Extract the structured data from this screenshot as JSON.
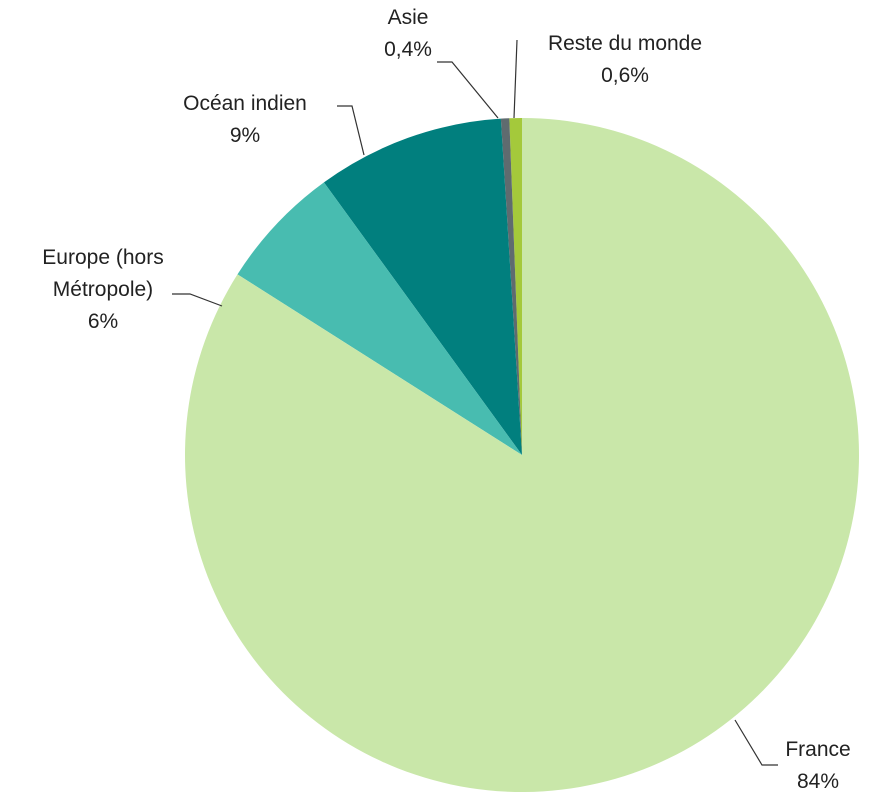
{
  "chart_data": {
    "type": "pie",
    "categories": [
      "France",
      "Europe (hors Métropole)",
      "Océan indien",
      "Asie",
      "Reste du monde"
    ],
    "values": [
      84,
      6,
      9,
      0.4,
      0.6
    ],
    "value_labels": [
      "84%",
      "6%",
      "9%",
      "0,4%",
      "0,6%"
    ],
    "colors": [
      "#c9e7a9",
      "#48bcb0",
      "#017f7e",
      "#5f6b6f",
      "#a4c93b"
    ]
  }
}
